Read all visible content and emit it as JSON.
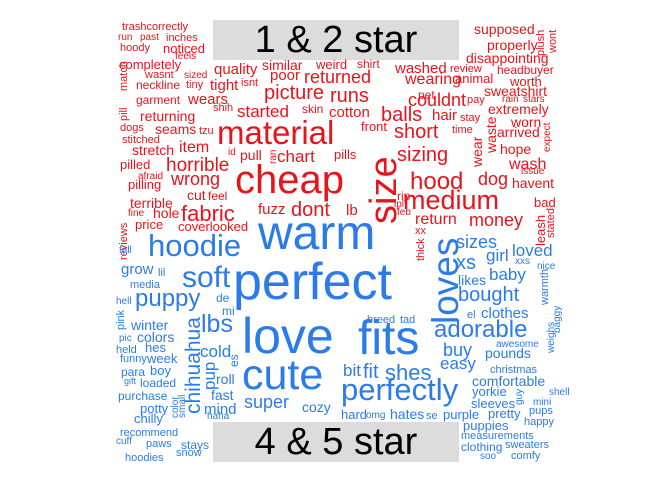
{
  "header_top": "1 & 2 star",
  "header_bottom": "4 & 5 star",
  "colors": {
    "negative": "#e8141b",
    "positive": "#2b7ce8",
    "header_bg": "#dcdcdc"
  },
  "words_negative": [
    "trashcorrectly",
    "run",
    "past",
    "inches",
    "hoody",
    "noticed",
    "feels",
    "completely",
    "wasnt",
    "sized",
    "neckline",
    "tiny",
    "garment",
    "wears",
    "returning",
    "dogs",
    "seams",
    "stitched",
    "stretch",
    "pilled",
    "pilling",
    "afraid",
    "terrible",
    "fine",
    "hole",
    "price",
    "quality",
    "similar",
    "weird",
    "shirt",
    "poor",
    "isnt",
    "tight",
    "picture",
    "returned",
    "runs",
    "started",
    "skin",
    "cotton",
    "front",
    "material",
    "pull",
    "id",
    "ran",
    "chart",
    "pills",
    "cheap",
    "cut",
    "feel",
    "fabric",
    "fuzz",
    "dont",
    "lb",
    "size",
    "rip",
    "lpl",
    "feb",
    "medium",
    "washed",
    "review",
    "wearing",
    "animal",
    "pet",
    "couldnt",
    "pay",
    "balls",
    "hair",
    "stay",
    "short",
    "time",
    "sizing",
    "hood",
    "return",
    "money",
    "supposed",
    "properly",
    "plush",
    "wont",
    "disappointing",
    "headbuyer",
    "worth",
    "sweatshirt",
    "rain",
    "stars",
    "extremely",
    "worn",
    "arrived",
    "expect",
    "hope",
    "wash",
    "issue",
    "dog",
    "havent",
    "bad",
    "stated",
    "waste",
    "wear",
    "match",
    "pill",
    "item",
    "horrible",
    "wrong",
    "tzu",
    "shih",
    "coverlooked",
    "reviews",
    "leash",
    "thick",
    "xx"
  ],
  "words_positive": [
    "warm",
    "perfect",
    "love",
    "fits",
    "cute",
    "hoodie",
    "soft",
    "puppy",
    "lbs",
    "chihuahua",
    "pup",
    "winter",
    "colors",
    "hes",
    "week",
    "para",
    "boy",
    "loaded",
    "purchase",
    "potty",
    "chilly",
    "recommend",
    "cuff",
    "paws",
    "stays",
    "hoodies",
    "snow",
    "de",
    "mi",
    "cold",
    "es",
    "roll",
    "fast",
    "mind",
    "haha",
    "super",
    "cozy",
    "bit",
    "fit",
    "shes",
    "perfectly",
    "breed",
    "tad",
    "hard",
    "omg",
    "hates",
    "se",
    "loves",
    "sizes",
    "xs",
    "girl",
    "loved",
    "baby",
    "likes",
    "bought",
    "el",
    "clothes",
    "adorable",
    "buy",
    "easy",
    "pounds",
    "awesome",
    "christmas",
    "comfortable",
    "yorkie",
    "guy",
    "sleeves",
    "purple",
    "pretty",
    "pups",
    "happy",
    "puppies",
    "measurements",
    "clothing",
    "sweaters",
    "soo",
    "comfy",
    "xxs",
    "nice",
    "warmth",
    "baggy",
    "weighs",
    "shell",
    "mini",
    "lil",
    "grow",
    "fall",
    "hell",
    "media",
    "pink",
    "pic",
    "held",
    "funny",
    "gift",
    "color",
    "small"
  ]
}
